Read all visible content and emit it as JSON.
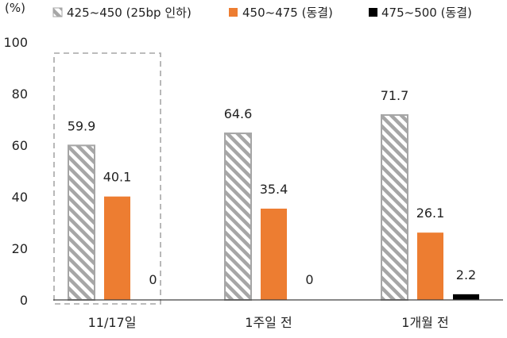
{
  "chart_data": {
    "type": "bar",
    "unit_label": "(%)",
    "categories": [
      "11/17일",
      "1주일 전",
      "1개월 전"
    ],
    "series": [
      {
        "name": "425~450 (25bp 인하)",
        "values": [
          59.9,
          64.6,
          71.7
        ],
        "style": "hatched",
        "color": "#a6a6a6"
      },
      {
        "name": "450~475 (동결)",
        "values": [
          40.1,
          35.4,
          26.1
        ],
        "style": "solid",
        "color": "#ed7d31"
      },
      {
        "name": "475~500 (동결)",
        "values": [
          0,
          0,
          2.2
        ],
        "style": "solid",
        "color": "#000000"
      }
    ],
    "data_labels": [
      [
        "59.9",
        "40.1",
        "0"
      ],
      [
        "64.6",
        "35.4",
        "0"
      ],
      [
        "71.7",
        "26.1",
        "2.2"
      ]
    ],
    "ylim": [
      0,
      100
    ],
    "yticks": [
      "0",
      "20",
      "40",
      "60",
      "80",
      "100"
    ],
    "highlight_category": "11/17일",
    "legend_position": "top",
    "grid": false
  }
}
